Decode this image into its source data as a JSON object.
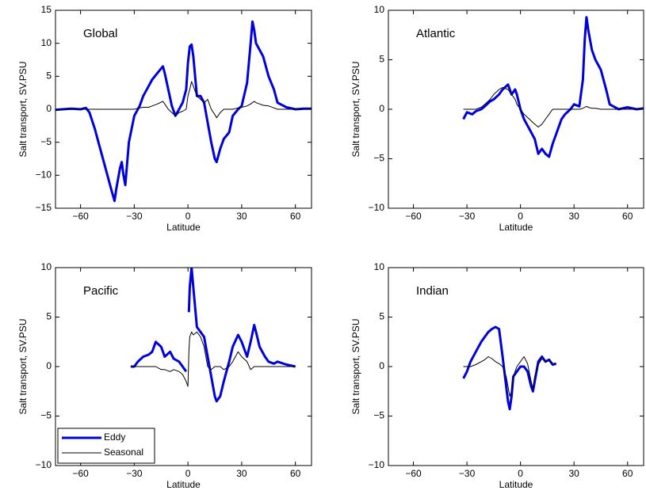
{
  "chart_data": [
    {
      "type": "line",
      "annotation": "Global",
      "xlabel": "Latitude",
      "ylabel": "Salt transport, SV.PSU",
      "xlim": [
        -74,
        69
      ],
      "ylim": [
        -15,
        15
      ],
      "xticks": [
        {
          "value": -60,
          "label": "−60"
        },
        {
          "value": -30,
          "label": "−30"
        },
        0,
        30,
        60
      ],
      "yticks": [
        {
          "value": -15,
          "label": "−15"
        },
        {
          "value": -10,
          "label": "−10"
        },
        {
          "value": -5,
          "label": "−5"
        },
        0,
        5,
        10,
        15
      ],
      "x": [
        -74,
        -70,
        -65,
        -60,
        -57,
        -55,
        -52,
        -50,
        -47,
        -45,
        -43,
        -41,
        -40,
        -38,
        -37,
        -36,
        -35,
        -33,
        -30,
        -27,
        -25,
        -22,
        -20,
        -17,
        -14,
        -13,
        -11,
        -9,
        -7,
        -5,
        -3,
        -1,
        0,
        1,
        2,
        3,
        5,
        7,
        9,
        11,
        13,
        15,
        16,
        18,
        20,
        23,
        25,
        28,
        30,
        33,
        35,
        36,
        37,
        38,
        40,
        42,
        45,
        48,
        50,
        55,
        60,
        65,
        69
      ],
      "series": [
        {
          "color": "#0000dd",
          "values": [
            -0.1,
            0,
            0.1,
            0,
            0.2,
            -0.5,
            -3,
            -5,
            -8,
            -10,
            -12,
            -13.9,
            -12,
            -9,
            -8,
            -10,
            -11.5,
            -5,
            -1,
            0.5,
            2,
            3.5,
            4.5,
            5.5,
            6.5,
            5.5,
            3,
            0.5,
            -1,
            0,
            1,
            3,
            7,
            9.5,
            9.8,
            8,
            2,
            2,
            1,
            -2,
            -5,
            -7.5,
            -8,
            -6,
            -4.5,
            -3.5,
            -1,
            0,
            0.5,
            4,
            10,
            13.3,
            12,
            10,
            9,
            8,
            5,
            3,
            1,
            0.3,
            0,
            0.1,
            0.1
          ]
        },
        {
          "color": "#000000",
          "values": [
            0,
            0,
            0,
            0,
            0,
            0,
            0,
            0,
            0,
            0,
            0,
            0,
            0,
            0,
            0,
            0,
            0,
            0,
            0,
            0.2,
            0.3,
            0.3,
            0.5,
            0.8,
            1.2,
            0.8,
            0,
            -0.5,
            -1,
            -0.5,
            -0.3,
            0,
            2,
            3,
            4.2,
            3.5,
            2,
            1.5,
            1,
            1.5,
            0,
            -0.8,
            -1.3,
            -0.5,
            0,
            0,
            0,
            0.2,
            0.3,
            0.5,
            0.8,
            1,
            1.2,
            1,
            0.8,
            0.6,
            0.5,
            0.2,
            0,
            0,
            0,
            0,
            0
          ]
        }
      ]
    },
    {
      "type": "line",
      "annotation": "Atlantic",
      "xlabel": "Latitude",
      "ylabel": "Salt transport, SV.PSU",
      "xlim": [
        -74,
        69
      ],
      "ylim": [
        -10,
        10
      ],
      "xticks": [
        {
          "value": -60,
          "label": "−60"
        },
        {
          "value": -30,
          "label": "−30"
        },
        0,
        30,
        60
      ],
      "yticks": [
        {
          "value": -10,
          "label": "−10"
        },
        {
          "value": -5,
          "label": "−5"
        },
        0,
        5,
        10
      ],
      "x": [
        -32,
        -30,
        -27,
        -25,
        -22,
        -20,
        -17,
        -15,
        -12,
        -10,
        -7,
        -5,
        -3,
        -2,
        0,
        2,
        5,
        8,
        10,
        12,
        14,
        16,
        18,
        20,
        23,
        25,
        28,
        30,
        33,
        35,
        36,
        37,
        38,
        40,
        42,
        45,
        48,
        50,
        55,
        60,
        65,
        69
      ],
      "series": [
        {
          "color": "#0000dd",
          "values": [
            -1,
            -0.3,
            -0.5,
            -0.2,
            0,
            0.3,
            0.8,
            1,
            1.5,
            2,
            2.5,
            1.5,
            2,
            1.5,
            0,
            -1,
            -2,
            -3,
            -4.5,
            -4,
            -4.5,
            -4.8,
            -3.5,
            -2.5,
            -1,
            -0.5,
            0,
            0.5,
            0.3,
            3,
            7,
            9.3,
            8,
            6,
            5,
            4,
            2,
            0.5,
            0,
            0.2,
            0,
            0.1
          ]
        },
        {
          "color": "#000000",
          "values": [
            0,
            0,
            0,
            0,
            0.2,
            0.5,
            1,
            1.5,
            2,
            2.2,
            2,
            1.5,
            1,
            0.5,
            0,
            -0.5,
            -1,
            -1.5,
            -1.8,
            -1.5,
            -1,
            -0.5,
            0,
            0,
            0,
            0,
            0,
            0,
            0,
            0.1,
            0.2,
            0.3,
            0.2,
            0.1,
            0.1,
            0,
            0,
            0,
            0,
            0,
            0,
            0
          ]
        }
      ]
    },
    {
      "type": "line",
      "annotation": "Pacific",
      "xlabel": "Latitude",
      "ylabel": "Salt transport, SV.PSU",
      "legend": "lower left",
      "xlim": [
        -74,
        69
      ],
      "ylim": [
        -10,
        10
      ],
      "xticks": [
        {
          "value": -60,
          "label": "−60"
        },
        {
          "value": -30,
          "label": "−30"
        },
        0,
        30,
        60
      ],
      "yticks": [
        {
          "value": -10,
          "label": "−10"
        },
        {
          "value": -5,
          "label": "−5"
        },
        0,
        5,
        10
      ],
      "x": [
        -32,
        -30,
        -28,
        -25,
        -22,
        -20,
        -18,
        -15,
        -13,
        -10,
        -8,
        -5,
        -3,
        -1,
        0,
        0.5,
        1,
        2,
        3,
        5,
        7,
        9,
        11,
        13,
        15,
        16,
        18,
        20,
        23,
        25,
        28,
        30,
        33,
        35,
        37,
        38,
        40,
        43,
        45,
        48,
        50,
        55,
        60
      ],
      "series": [
        {
          "name": "Eddy",
          "color": "#0000dd",
          "values": [
            0,
            0,
            0.5,
            1,
            1.2,
            1.5,
            2.5,
            2,
            1,
            1.5,
            0.8,
            0.5,
            0,
            -0.5,
            null,
            5.5,
            8,
            10,
            8,
            4,
            3.5,
            3,
            1,
            -1,
            -3,
            -3.5,
            -3,
            -1.5,
            0.5,
            2,
            3.2,
            2.5,
            1,
            2.5,
            4.2,
            3.5,
            2,
            1,
            0.5,
            0.3,
            0.5,
            0.2,
            0
          ]
        },
        {
          "name": "Seasonal",
          "color": "#000000",
          "values": [
            0,
            0,
            0,
            0,
            0,
            0,
            0,
            -0.3,
            -0.3,
            -0.5,
            -0.3,
            -0.5,
            -0.8,
            -1.5,
            -2,
            1.5,
            3,
            3.5,
            3.2,
            3.5,
            3,
            2,
            0,
            -0.3,
            0,
            0,
            0,
            -0.3,
            0,
            0.5,
            1.5,
            1,
            0.5,
            -0.3,
            0,
            0,
            0,
            0,
            0,
            0,
            0,
            0,
            0
          ]
        }
      ]
    },
    {
      "type": "line",
      "annotation": "Indian",
      "xlabel": "Latitude",
      "ylabel": "Salt transport, SV.PSU",
      "xlim": [
        -74,
        69
      ],
      "ylim": [
        -10,
        10
      ],
      "xticks": [
        {
          "value": -60,
          "label": "−60"
        },
        {
          "value": -30,
          "label": "−30"
        },
        0,
        30,
        60
      ],
      "yticks": [
        {
          "value": -10,
          "label": "−10"
        },
        {
          "value": -5,
          "label": "−5"
        },
        0,
        5,
        10
      ],
      "x": [
        -32,
        -30,
        -28,
        -25,
        -22,
        -20,
        -18,
        -16,
        -14,
        -12,
        -10,
        -8,
        -7,
        -6,
        -5,
        -4,
        -2,
        0,
        2,
        4,
        6,
        7,
        8,
        10,
        12,
        14,
        16,
        18,
        20
      ],
      "series": [
        {
          "color": "#0000dd",
          "values": [
            -1.2,
            -0.5,
            0.5,
            1.5,
            2.5,
            3,
            3.5,
            3.8,
            4,
            3.8,
            1,
            -2,
            -3.5,
            -4.3,
            -3,
            -1,
            -0.5,
            0,
            0,
            -0.5,
            -2,
            -2.5,
            -1.5,
            0.5,
            1,
            0.5,
            0.7,
            0.2,
            0.3
          ]
        },
        {
          "color": "#000000",
          "values": [
            0,
            0,
            0,
            0.2,
            0.5,
            0.7,
            1,
            0.8,
            0.5,
            0.3,
            0,
            -1,
            -2,
            -3,
            -2.5,
            -1,
            0,
            0.5,
            1,
            0.3,
            -1.5,
            -2.3,
            -1,
            0.2,
            0.8,
            0.5,
            0.6,
            0.3,
            0.3
          ]
        }
      ]
    }
  ]
}
